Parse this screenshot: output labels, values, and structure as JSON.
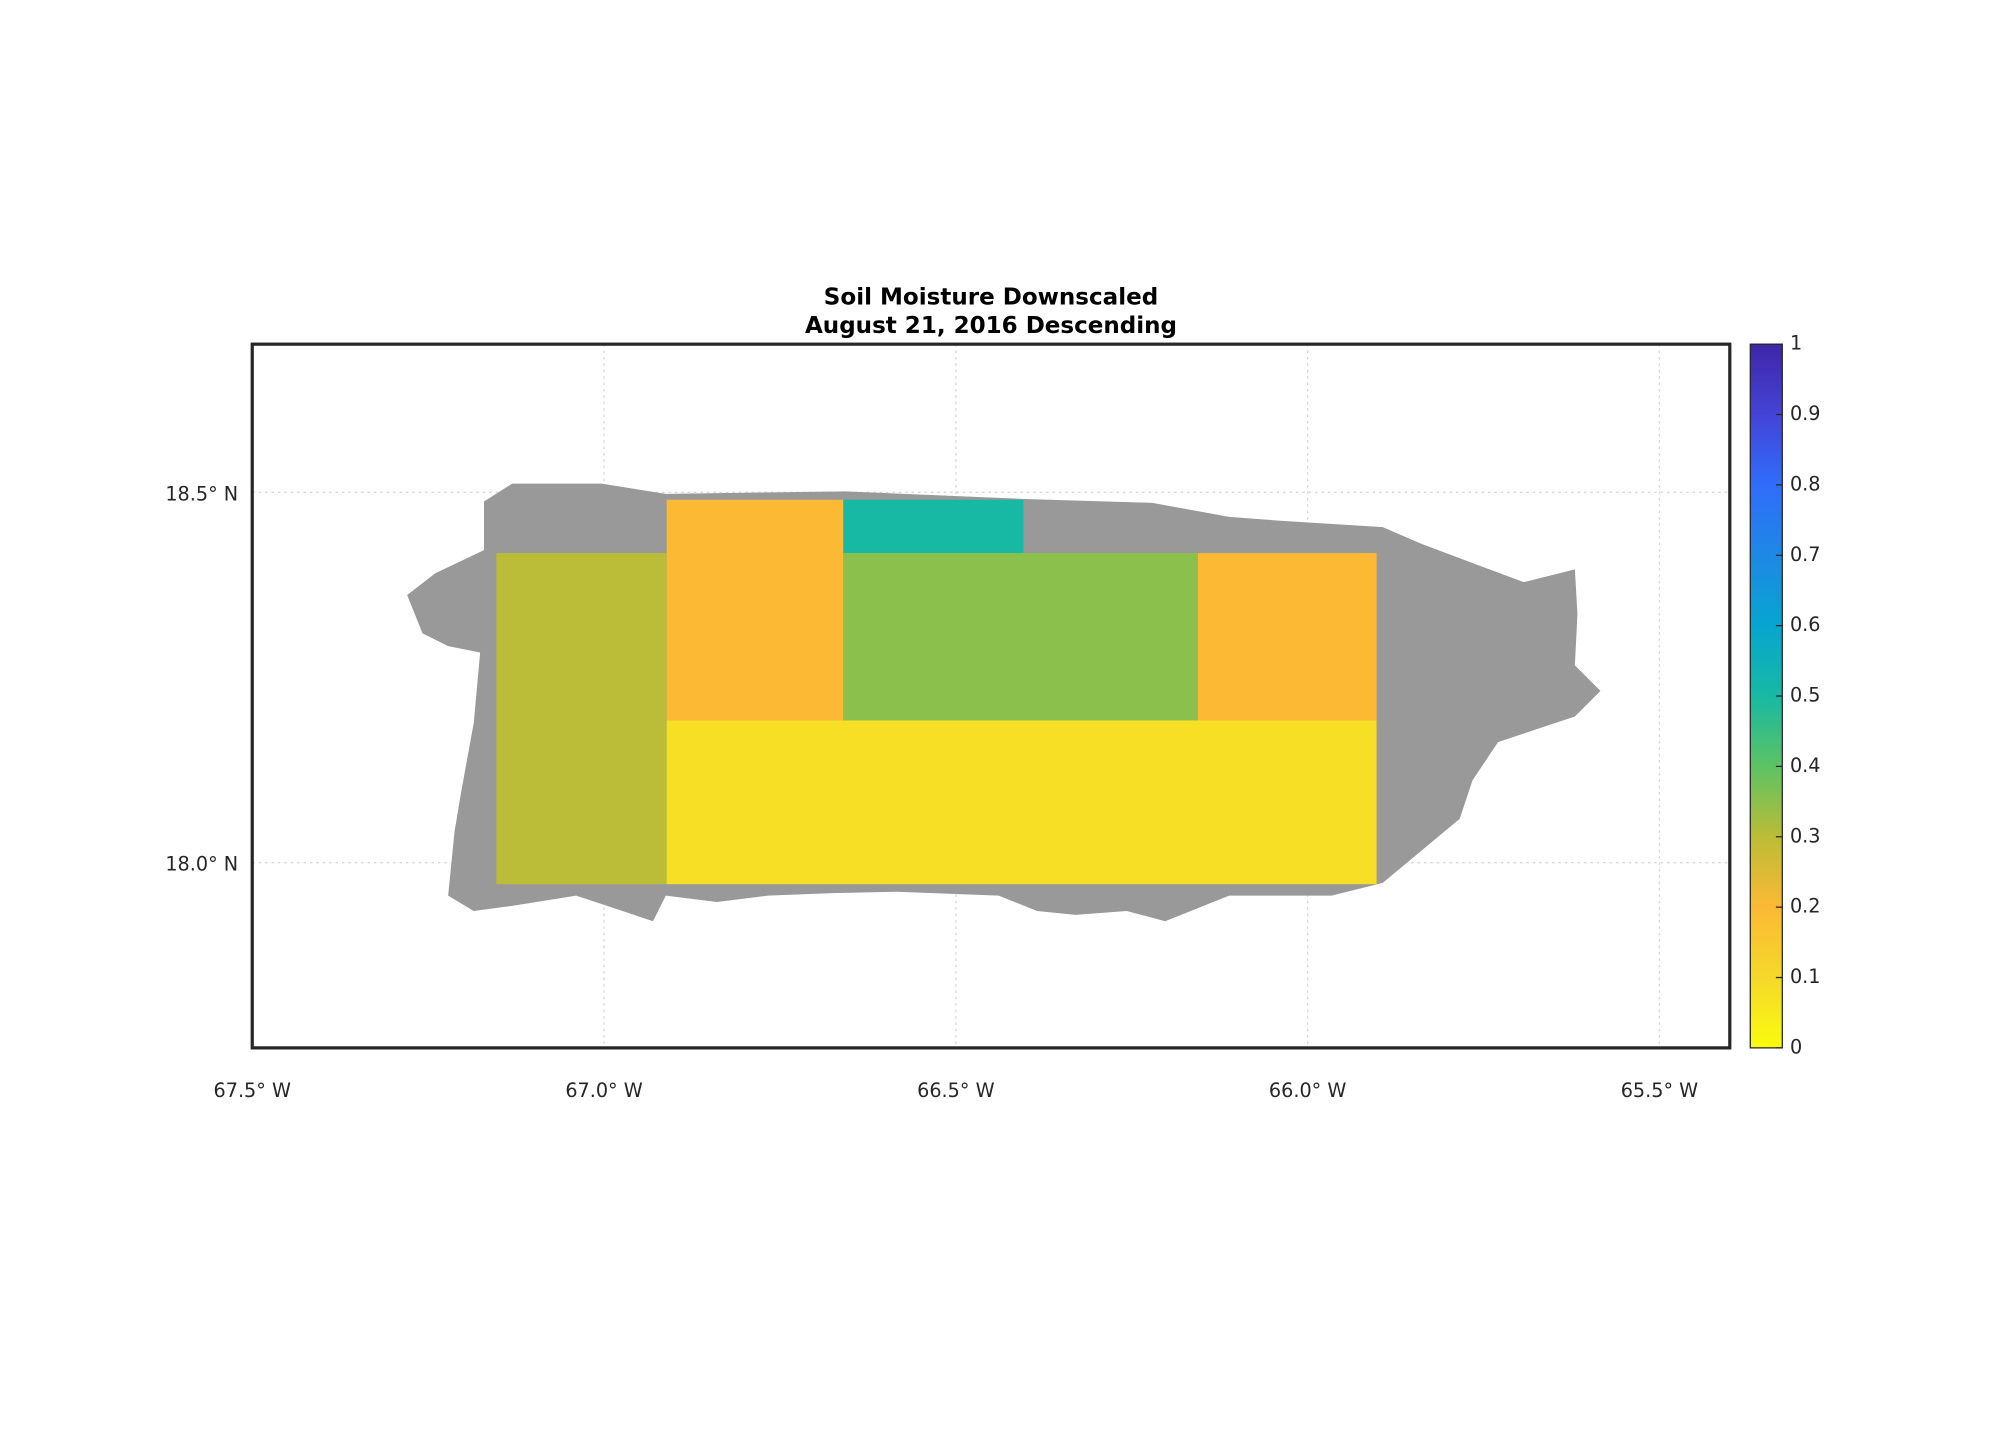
{
  "chart_data": {
    "type": "map",
    "title": [
      "Soil Moisture Downscaled",
      "August 21, 2016 Descending"
    ],
    "xlim": [
      -67.5,
      -65.4
    ],
    "ylim": [
      17.75,
      18.7
    ],
    "xticks": [
      {
        "value": -67.5,
        "label": "67.5° W"
      },
      {
        "value": -67.0,
        "label": "67.0° W"
      },
      {
        "value": -66.5,
        "label": "66.5° W"
      },
      {
        "value": -66.0,
        "label": "66.0° W"
      },
      {
        "value": -65.5,
        "label": "65.5° W"
      }
    ],
    "yticks": [
      {
        "value": 18.0,
        "label": "18.0° N"
      },
      {
        "value": 18.5,
        "label": "18.5° N"
      }
    ],
    "grid": true,
    "tiles": [
      {
        "lon": [
          -67.153,
          -66.911
        ],
        "lat": [
          17.971,
          18.418
        ],
        "value": 0.3
      },
      {
        "lon": [
          -66.911,
          -66.66
        ],
        "lat": [
          18.192,
          18.49
        ],
        "value": 0.2
      },
      {
        "lon": [
          -66.66,
          -66.404
        ],
        "lat": [
          18.418,
          18.49
        ],
        "value": 0.5
      },
      {
        "lon": [
          -66.66,
          -66.156
        ],
        "lat": [
          18.192,
          18.418
        ],
        "value": 0.35
      },
      {
        "lon": [
          -66.156,
          -65.902
        ],
        "lat": [
          18.192,
          18.418
        ],
        "value": 0.2
      },
      {
        "lon": [
          -66.911,
          -65.902
        ],
        "lat": [
          17.971,
          18.192
        ],
        "value": 0.08
      }
    ],
    "colorbar": {
      "clim": [
        0,
        1
      ],
      "ticks": [
        0,
        0.1,
        0.2,
        0.3,
        0.4,
        0.5,
        0.6,
        0.7,
        0.8,
        0.9,
        1
      ],
      "colormap": [
        "#f9fb0e",
        "#f5d82a",
        "#fbb934",
        "#bbbc37",
        "#5cc363",
        "#17b9a4",
        "#07a5d0",
        "#1e88e5",
        "#306dfb",
        "#4443d6",
        "#3e26a8"
      ]
    }
  }
}
